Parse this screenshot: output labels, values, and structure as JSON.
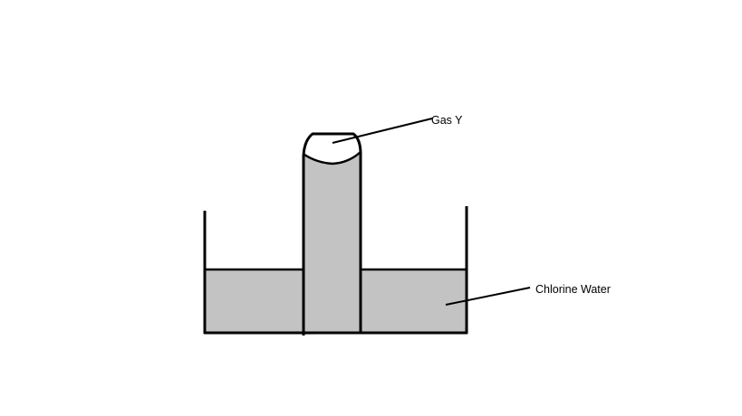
{
  "labels": {
    "gas": "Gas Y",
    "water": "Chlorine Water"
  },
  "colors": {
    "liquid": "#c3c3c3",
    "outline": "#000000",
    "background": "#ffffff"
  }
}
